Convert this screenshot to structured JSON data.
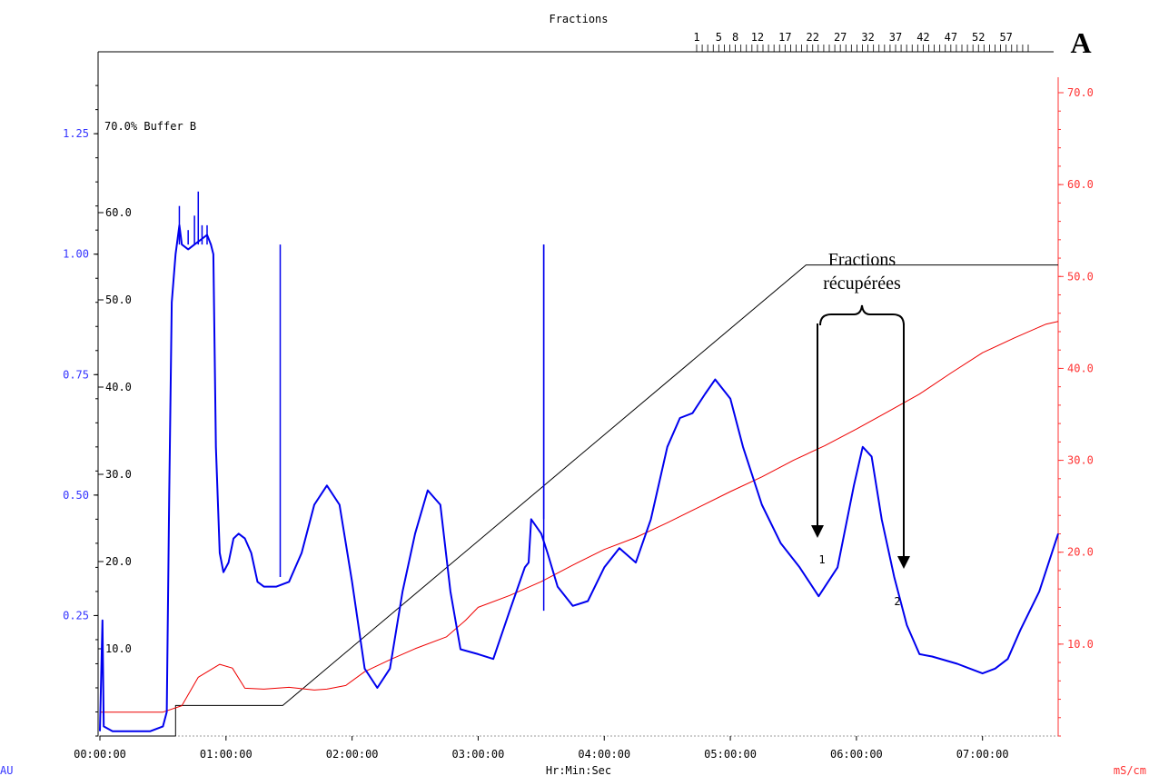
{
  "chart_data": {
    "type": "line",
    "panel_label": "A",
    "x_axis": {
      "title": "Hr:Min:Sec",
      "range_hours": [
        0,
        7.6
      ],
      "ticks": [
        {
          "value": 0,
          "label": "00:00:00"
        },
        {
          "value": 1,
          "label": "01:00:00"
        },
        {
          "value": 2,
          "label": "02:00:00"
        },
        {
          "value": 3,
          "label": "03:00:00"
        },
        {
          "value": 4,
          "label": "04:00:00"
        },
        {
          "value": 5,
          "label": "05:00:00"
        },
        {
          "value": 6,
          "label": "06:00:00"
        },
        {
          "value": 7,
          "label": "07:00:00"
        }
      ]
    },
    "y_left_au": {
      "unit": "AU",
      "color": "#3333ff",
      "range": [
        0,
        1.42
      ],
      "ticks": [
        {
          "value": 0.25,
          "label": "0.25"
        },
        {
          "value": 0.5,
          "label": "0.50"
        },
        {
          "value": 0.75,
          "label": "0.75"
        },
        {
          "value": 1.0,
          "label": "1.00"
        },
        {
          "value": 1.25,
          "label": "1.25"
        }
      ]
    },
    "y_inner_buffer": {
      "label": "70.0% Buffer B",
      "range": [
        0,
        70
      ],
      "ticks": [
        {
          "value": 10,
          "label": "10.0"
        },
        {
          "value": 20,
          "label": "20.0"
        },
        {
          "value": 30,
          "label": "30.0"
        },
        {
          "value": 40,
          "label": "40.0"
        },
        {
          "value": 50,
          "label": "50.0"
        },
        {
          "value": 60,
          "label": "60.0"
        }
      ]
    },
    "y_right_ms": {
      "unit": "mS/cm",
      "color": "#ff3333",
      "range": [
        0,
        70
      ],
      "ticks": [
        {
          "value": 10,
          "label": "10.0"
        },
        {
          "value": 20,
          "label": "20.0"
        },
        {
          "value": 30,
          "label": "30.0"
        },
        {
          "value": 40,
          "label": "40.0"
        },
        {
          "value": 50,
          "label": "50.0"
        },
        {
          "value": 60,
          "label": "60.0"
        },
        {
          "value": 70,
          "label": "70.0"
        }
      ]
    },
    "fractions": {
      "title": "Fractions",
      "labels": [
        "1",
        "5",
        "8",
        "12",
        "17",
        "22",
        "27",
        "32",
        "37",
        "42",
        "47",
        "52",
        "57"
      ],
      "start_hours": 4.6,
      "end_hours": 7.3,
      "tick_count": 61
    },
    "series": [
      {
        "name": "UV",
        "color": "#0000ee",
        "axis": "left",
        "points": [
          [
            0,
            0.01
          ],
          [
            0.02,
            0.24
          ],
          [
            0.03,
            0.02
          ],
          [
            0.1,
            0.01
          ],
          [
            0.3,
            0.01
          ],
          [
            0.4,
            0.01
          ],
          [
            0.5,
            0.02
          ],
          [
            0.53,
            0.05
          ],
          [
            0.55,
            0.5
          ],
          [
            0.57,
            0.9
          ],
          [
            0.6,
            1.0
          ],
          [
            0.63,
            1.06
          ],
          [
            0.65,
            1.02
          ],
          [
            0.7,
            1.01
          ],
          [
            0.75,
            1.02
          ],
          [
            0.8,
            1.03
          ],
          [
            0.85,
            1.04
          ],
          [
            0.88,
            1.02
          ],
          [
            0.9,
            1.0
          ],
          [
            0.92,
            0.6
          ],
          [
            0.95,
            0.38
          ],
          [
            0.98,
            0.34
          ],
          [
            1.02,
            0.36
          ],
          [
            1.06,
            0.41
          ],
          [
            1.1,
            0.42
          ],
          [
            1.15,
            0.41
          ],
          [
            1.2,
            0.38
          ],
          [
            1.25,
            0.32
          ],
          [
            1.3,
            0.31
          ],
          [
            1.4,
            0.31
          ],
          [
            1.5,
            0.32
          ],
          [
            1.6,
            0.38
          ],
          [
            1.7,
            0.48
          ],
          [
            1.8,
            0.52
          ],
          [
            1.9,
            0.48
          ],
          [
            2.0,
            0.32
          ],
          [
            2.1,
            0.14
          ],
          [
            2.2,
            0.1
          ],
          [
            2.3,
            0.14
          ],
          [
            2.4,
            0.3
          ],
          [
            2.5,
            0.42
          ],
          [
            2.6,
            0.51
          ],
          [
            2.7,
            0.48
          ],
          [
            2.78,
            0.3
          ],
          [
            2.86,
            0.18
          ],
          [
            3.0,
            0.17
          ],
          [
            3.12,
            0.16
          ],
          [
            3.25,
            0.26
          ],
          [
            3.37,
            0.35
          ],
          [
            3.4,
            0.36
          ],
          [
            3.42,
            0.45
          ],
          [
            3.5,
            0.42
          ],
          [
            3.55,
            0.38
          ],
          [
            3.63,
            0.31
          ],
          [
            3.75,
            0.27
          ],
          [
            3.87,
            0.28
          ],
          [
            4.0,
            0.35
          ],
          [
            4.12,
            0.39
          ],
          [
            4.25,
            0.36
          ],
          [
            4.37,
            0.45
          ],
          [
            4.5,
            0.6
          ],
          [
            4.6,
            0.66
          ],
          [
            4.7,
            0.67
          ],
          [
            4.8,
            0.71
          ],
          [
            4.88,
            0.74
          ],
          [
            5.0,
            0.7
          ],
          [
            5.1,
            0.6
          ],
          [
            5.25,
            0.48
          ],
          [
            5.4,
            0.4
          ],
          [
            5.55,
            0.35
          ],
          [
            5.7,
            0.29
          ],
          [
            5.85,
            0.35
          ],
          [
            5.98,
            0.52
          ],
          [
            6.05,
            0.6
          ],
          [
            6.12,
            0.58
          ],
          [
            6.2,
            0.45
          ],
          [
            6.3,
            0.33
          ],
          [
            6.4,
            0.23
          ],
          [
            6.5,
            0.17
          ],
          [
            6.6,
            0.165
          ],
          [
            6.8,
            0.15
          ],
          [
            6.9,
            0.14
          ],
          [
            7.0,
            0.13
          ],
          [
            7.1,
            0.14
          ],
          [
            7.2,
            0.16
          ],
          [
            7.3,
            0.22
          ],
          [
            7.45,
            0.3
          ],
          [
            7.6,
            0.42
          ]
        ]
      },
      {
        "name": "Conductivity",
        "color": "#ee0000",
        "axis": "right",
        "points": [
          [
            0,
            2.6
          ],
          [
            0.5,
            2.6
          ],
          [
            0.65,
            3.3
          ],
          [
            0.78,
            6.4
          ],
          [
            0.95,
            7.8
          ],
          [
            1.05,
            7.4
          ],
          [
            1.15,
            5.2
          ],
          [
            1.3,
            5.1
          ],
          [
            1.5,
            5.3
          ],
          [
            1.7,
            5.0
          ],
          [
            1.8,
            5.1
          ],
          [
            1.95,
            5.5
          ],
          [
            2.1,
            7.0
          ],
          [
            2.3,
            8.3
          ],
          [
            2.5,
            9.5
          ],
          [
            2.75,
            10.8
          ],
          [
            2.9,
            12.6
          ],
          [
            3.0,
            14.0
          ],
          [
            3.25,
            15.3
          ],
          [
            3.5,
            16.8
          ],
          [
            3.75,
            18.6
          ],
          [
            4.0,
            20.3
          ],
          [
            4.25,
            21.6
          ],
          [
            4.5,
            23.2
          ],
          [
            4.75,
            24.9
          ],
          [
            5.0,
            26.6
          ],
          [
            5.25,
            28.2
          ],
          [
            5.5,
            30.0
          ],
          [
            5.75,
            31.6
          ],
          [
            6.0,
            33.4
          ],
          [
            6.25,
            35.3
          ],
          [
            6.5,
            37.2
          ],
          [
            6.75,
            39.5
          ],
          [
            7.0,
            41.7
          ],
          [
            7.25,
            43.3
          ],
          [
            7.5,
            44.8
          ],
          [
            7.6,
            45.1
          ]
        ]
      },
      {
        "name": "Buffer B gradient",
        "color": "#000000",
        "axis": "inner",
        "points": [
          [
            0,
            0
          ],
          [
            0.6,
            0
          ],
          [
            0.6,
            3.5
          ],
          [
            1.45,
            3.5
          ],
          [
            5.6,
            54.0
          ],
          [
            7.6,
            54.0
          ]
        ]
      }
    ],
    "annotations": {
      "title_line1": "Fractions",
      "title_line2": "récupérées",
      "marker_1": "1",
      "marker_2": "2",
      "arrow_start_hours": 5.7,
      "arrow_end_hours": 6.38,
      "marker_1_hours": 5.72,
      "marker_2_hours": 6.33
    }
  }
}
